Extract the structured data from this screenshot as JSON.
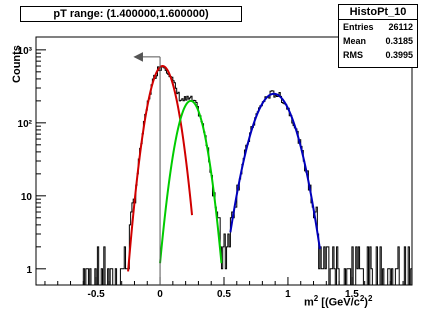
{
  "title": "pT range: (1.400000,1.600000)",
  "stats": {
    "name": "HistoPt_10",
    "entries_label": "Entries",
    "entries_value": "26112",
    "mean_label": "Mean",
    "mean_value": "0.3185",
    "rms_label": "RMS",
    "rms_value": "0.3995"
  },
  "axis": {
    "ylabel": "Counts",
    "xlabel_text": "m",
    "xlabel_units": "[(GeV/c",
    "xlabel_close": ")"
  },
  "colors": {
    "histogram": "#000000",
    "fit_pion": "#d00000",
    "fit_kaon": "#00cc00",
    "fit_proton": "#0000bb",
    "cut_marker": "#555555"
  },
  "chart_data": {
    "type": "histogram",
    "xlim": [
      -0.97,
      1.97
    ],
    "ylim": [
      0.6,
      1500
    ],
    "ylog": true,
    "x_ticks": [
      {
        "value": -0.5,
        "label": "-0.5"
      },
      {
        "value": 0,
        "label": "0"
      },
      {
        "value": 0.5,
        "label": "0.5"
      },
      {
        "value": 1,
        "label": "1"
      },
      {
        "value": 1.5,
        "label": "1.5"
      }
    ],
    "y_ticks": [
      {
        "value": 1,
        "label": "1"
      },
      {
        "value": 10,
        "label": "10"
      },
      {
        "value": 100,
        "label": "10²"
      },
      {
        "value": 1000,
        "label": "10³"
      }
    ],
    "fits": [
      {
        "name": "pion",
        "amplitude": 600,
        "mean": 0.02,
        "sigma": 0.075,
        "range": [
          -0.25,
          0.25
        ]
      },
      {
        "name": "kaon",
        "amplitude": 200,
        "mean": 0.24,
        "sigma": 0.075,
        "range": [
          0.0,
          0.48
        ]
      },
      {
        "name": "proton",
        "amplitude": 250,
        "mean": 0.89,
        "sigma": 0.115,
        "range": [
          0.55,
          1.25
        ]
      }
    ],
    "cut": {
      "x": 0.0,
      "y_top": 800,
      "arrow_to_x": -0.2
    }
  }
}
